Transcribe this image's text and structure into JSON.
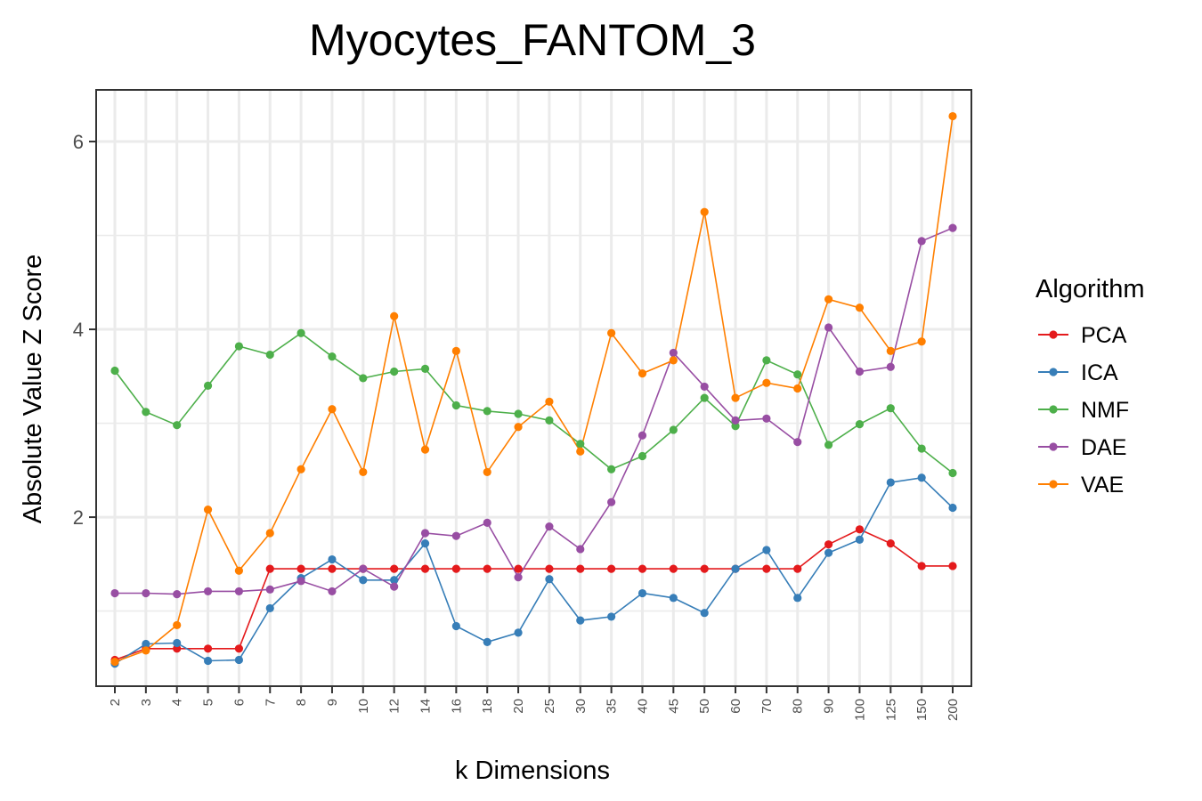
{
  "chart_data": {
    "type": "line",
    "title": "Myocytes_FANTOM_3",
    "xlabel": "k Dimensions",
    "ylabel": "Absolute Value Z Score",
    "x": [
      "2",
      "3",
      "4",
      "5",
      "6",
      "7",
      "8",
      "9",
      "10",
      "12",
      "14",
      "16",
      "18",
      "20",
      "25",
      "30",
      "35",
      "40",
      "45",
      "50",
      "60",
      "70",
      "80",
      "90",
      "100",
      "125",
      "150",
      "200"
    ],
    "ylim": [
      0.2,
      6.55
    ],
    "yticks": [
      2,
      4,
      6
    ],
    "grid": true,
    "legend": {
      "title": "Algorithm",
      "placement": "right"
    },
    "series": [
      {
        "name": "PCA",
        "color": "#E41A1C",
        "values": [
          0.48,
          0.6,
          0.6,
          0.6,
          0.6,
          1.45,
          1.45,
          1.45,
          1.45,
          1.45,
          1.45,
          1.45,
          1.45,
          1.45,
          1.45,
          1.45,
          1.45,
          1.45,
          1.45,
          1.45,
          1.45,
          1.45,
          1.45,
          1.71,
          1.87,
          1.72,
          1.48,
          1.48
        ]
      },
      {
        "name": "ICA",
        "color": "#377EB8",
        "values": [
          0.44,
          0.65,
          0.66,
          0.47,
          0.48,
          1.03,
          1.35,
          1.55,
          1.33,
          1.33,
          1.72,
          0.84,
          0.67,
          0.77,
          1.34,
          0.9,
          0.94,
          1.19,
          1.14,
          0.98,
          1.45,
          1.65,
          1.14,
          1.62,
          1.76,
          2.37,
          2.42,
          2.1
        ]
      },
      {
        "name": "NMF",
        "color": "#4DAF4A",
        "values": [
          3.56,
          3.12,
          2.98,
          3.4,
          3.82,
          3.73,
          3.96,
          3.71,
          3.48,
          3.55,
          3.58,
          3.19,
          3.13,
          3.1,
          3.03,
          2.78,
          2.51,
          2.65,
          2.93,
          3.27,
          2.97,
          3.67,
          3.52,
          2.77,
          2.99,
          3.16,
          2.73,
          2.47
        ]
      },
      {
        "name": "DAE",
        "color": "#984EA3",
        "values": [
          1.19,
          1.19,
          1.18,
          1.21,
          1.21,
          1.23,
          1.32,
          1.21,
          1.45,
          1.26,
          1.83,
          1.8,
          1.94,
          1.36,
          1.9,
          1.66,
          2.16,
          2.87,
          3.75,
          3.39,
          3.03,
          3.05,
          2.8,
          4.02,
          3.55,
          3.6,
          4.94,
          5.08
        ]
      },
      {
        "name": "VAE",
        "color": "#FF7F00",
        "values": [
          0.46,
          0.58,
          0.85,
          2.08,
          1.43,
          1.83,
          2.51,
          3.15,
          2.48,
          4.14,
          2.72,
          3.77,
          2.48,
          2.96,
          3.23,
          2.7,
          3.96,
          3.53,
          3.67,
          5.25,
          3.27,
          3.43,
          3.37,
          4.32,
          4.23,
          3.77,
          3.87,
          6.27
        ]
      }
    ]
  }
}
